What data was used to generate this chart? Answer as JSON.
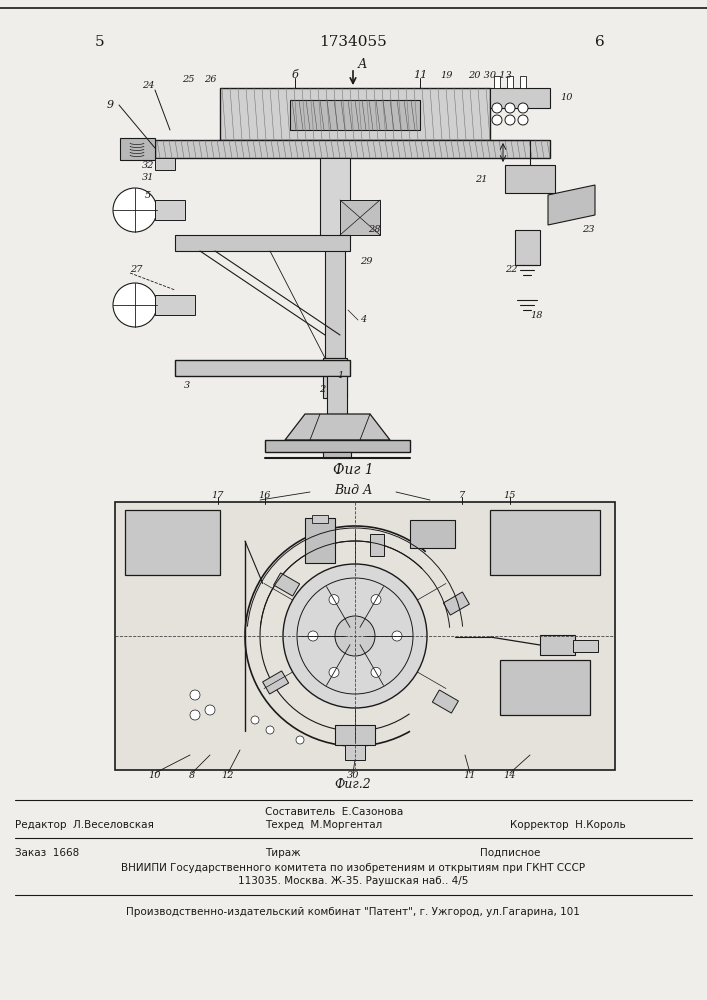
{
  "patent_number": "1734055",
  "page_left": "5",
  "page_right": "6",
  "fig1_label": "Фиг 1",
  "fig2_label": "Фиг.2",
  "view_label": "Вид А",
  "bg_color": "#f0eeea",
  "line_color": "#1a1a1a",
  "editor_line": "Редактор  Л.Веселовская",
  "composer_line1": "Составитель  Е.Сазонова",
  "composer_line2": "Техред  М.Моргентал",
  "corrector_line": "Корректор  Н.Король",
  "order_line": "Заказ  1668",
  "tiraz_line": "Тираж",
  "podpisnoe_line": "Подписное",
  "vniipи_line1": "ВНИИПИ Государственного комитета по изобретениям и открытиям при ГКНТ СССР",
  "vniipи_line2": "113035. Москва. Ж-35. Раушская наб.. 4/5",
  "publisher_line": "Производственно-издательский комбинат \"Патент\", г. Ужгород, ул.Гагарина, 101"
}
